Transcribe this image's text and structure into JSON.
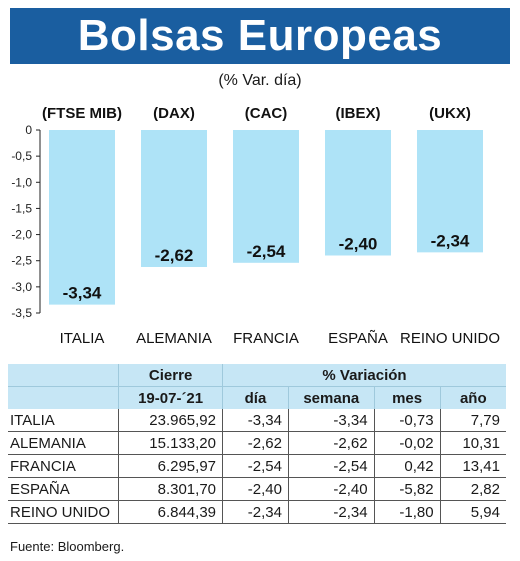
{
  "header": {
    "title": "Bolsas Europeas",
    "subtitle": "(% Var. día)"
  },
  "chart_data": {
    "type": "bar",
    "index_labels": [
      "(FTSE MIB)",
      "(DAX)",
      "(CAC)",
      "(IBEX)",
      "(UKX)"
    ],
    "categories": [
      "ITALIA",
      "ALEMANIA",
      "FRANCIA",
      "ESPAÑA",
      "REINO UNIDO"
    ],
    "values": [
      -3.34,
      -2.62,
      -2.54,
      -2.4,
      -2.34
    ],
    "value_labels": [
      "-3,34",
      "-2,62",
      "-2,54",
      "-2,40",
      "-2,34"
    ],
    "ylim": [
      -3.5,
      0
    ],
    "yticks": [
      "0",
      "-0,5",
      "-1,0",
      "-1,5",
      "-2,0",
      "-2,5",
      "-3,0",
      "-3,5"
    ],
    "bar_color": "#aee3f7",
    "grid": false
  },
  "table": {
    "header_cierre": "Cierre",
    "header_variacion": "% Variación",
    "date": "19-07-´21",
    "columns": [
      "día",
      "semana",
      "mes",
      "año"
    ],
    "rows": [
      {
        "name": "ITALIA",
        "cierre": "23.965,92",
        "dia": "-3,34",
        "semana": "-3,34",
        "mes": "-0,73",
        "ano": "7,79"
      },
      {
        "name": "ALEMANIA",
        "cierre": "15.133,20",
        "dia": "-2,62",
        "semana": "-2,62",
        "mes": "-0,02",
        "ano": "10,31"
      },
      {
        "name": "FRANCIA",
        "cierre": "6.295,97",
        "dia": "-2,54",
        "semana": "-2,54",
        "mes": "0,42",
        "ano": "13,41"
      },
      {
        "name": "ESPAÑA",
        "cierre": "8.301,70",
        "dia": "-2,40",
        "semana": "-2,40",
        "mes": "-5,82",
        "ano": "2,82"
      },
      {
        "name": "REINO UNIDO",
        "cierre": "6.844,39",
        "dia": "-2,34",
        "semana": "-2,34",
        "mes": "-1,80",
        "ano": "5,94"
      }
    ]
  },
  "footer": {
    "source": "Fuente: Bloomberg."
  },
  "colors": {
    "banner": "#1a5ea0",
    "header_fill": "#c6e6f5",
    "bar": "#aee3f7"
  }
}
